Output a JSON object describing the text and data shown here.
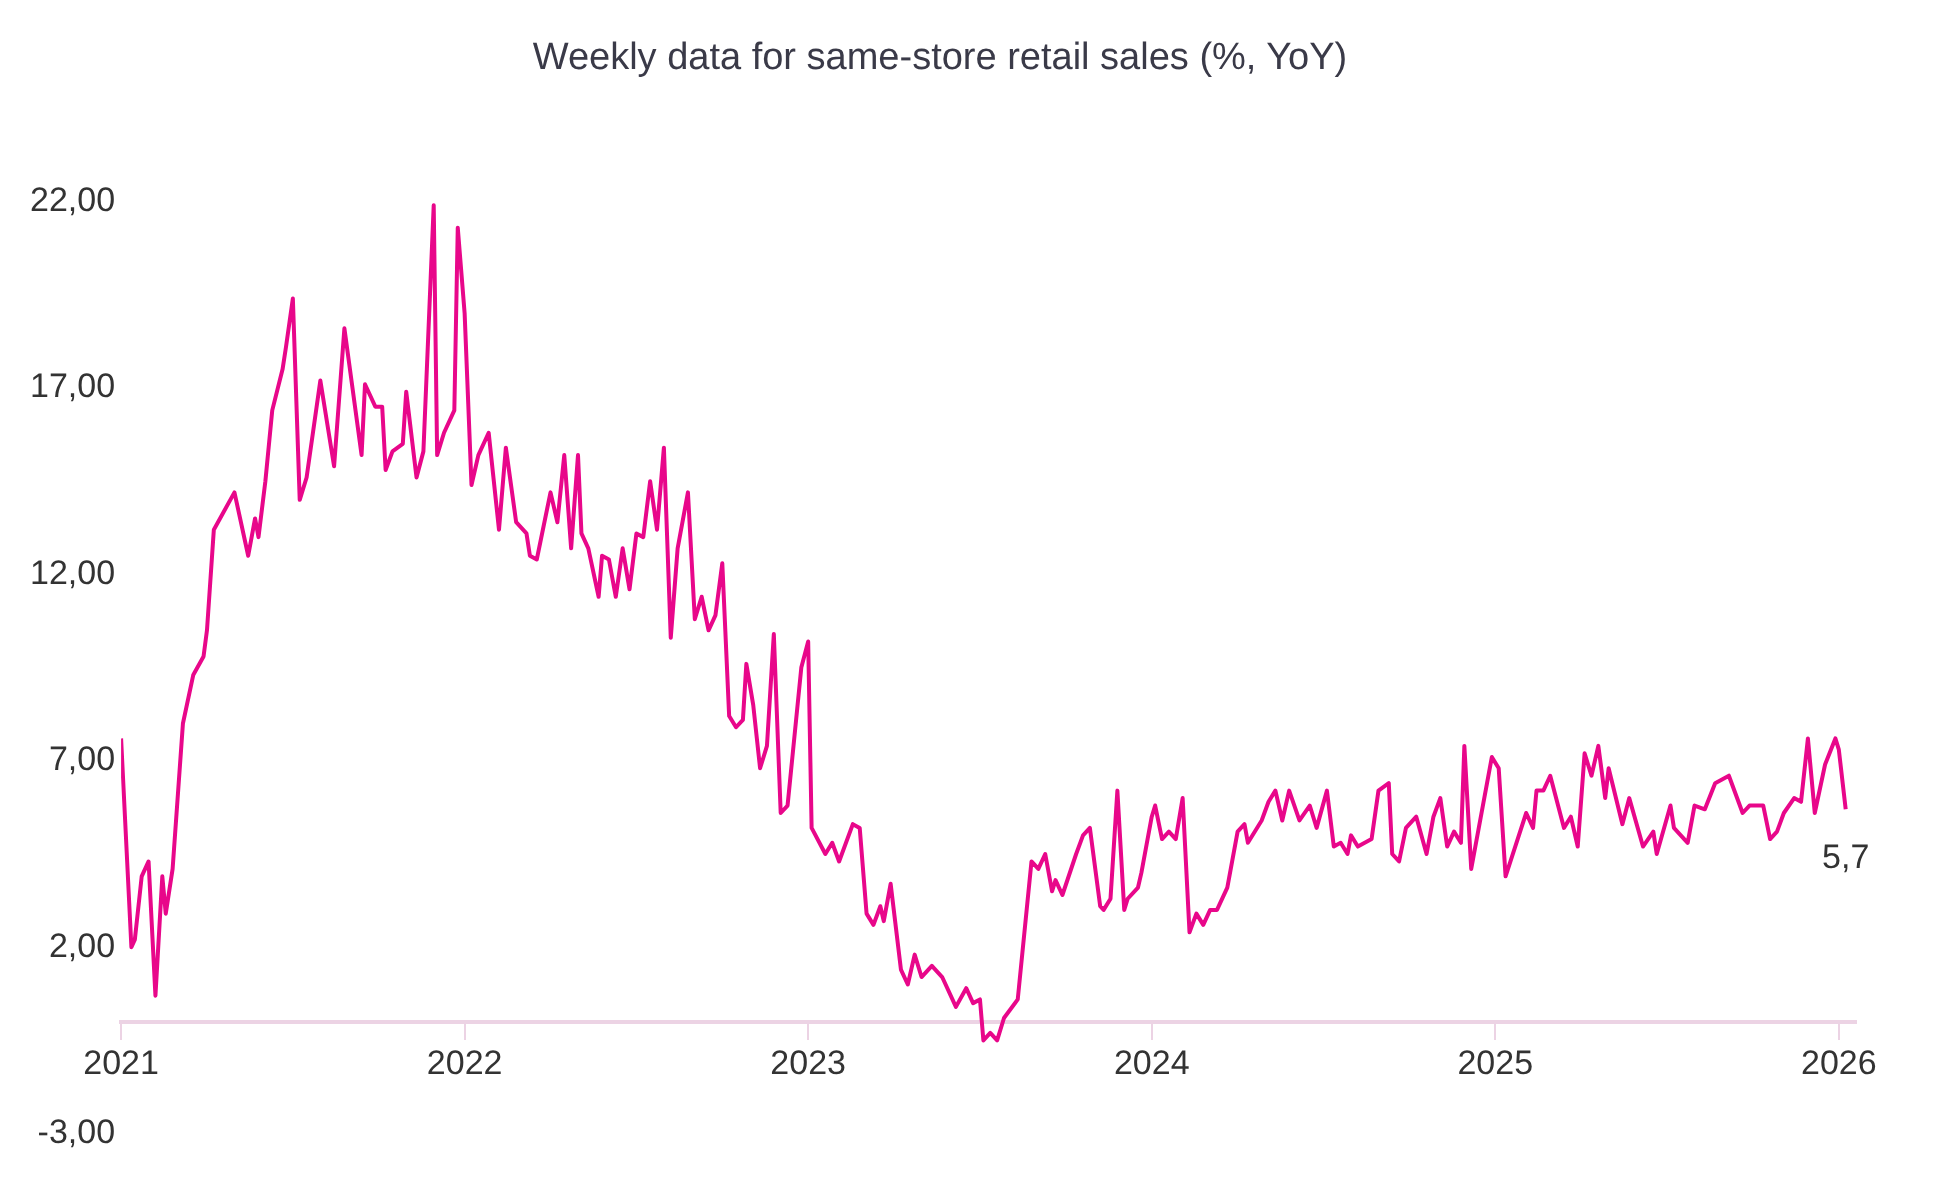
{
  "chart_data": {
    "type": "line",
    "title": "Weekly data for same-store retail sales (%, YoY)",
    "x": [
      2021.0,
      2021.03,
      2021.04,
      2021.06,
      2021.08,
      2021.1,
      2021.12,
      2021.13,
      2021.15,
      2021.18,
      2021.21,
      2021.24,
      2021.25,
      2021.27,
      2021.33,
      2021.37,
      2021.39,
      2021.4,
      2021.42,
      2021.44,
      2021.47,
      2021.48,
      2021.5,
      2021.52,
      2021.54,
      2021.58,
      2021.62,
      2021.65,
      2021.7,
      2021.71,
      2021.74,
      2021.76,
      2021.77,
      2021.79,
      2021.82,
      2021.83,
      2021.86,
      2021.88,
      2021.91,
      2021.92,
      2021.94,
      2021.97,
      2021.98,
      2022.0,
      2022.02,
      2022.04,
      2022.07,
      2022.1,
      2022.12,
      2022.15,
      2022.18,
      2022.19,
      2022.21,
      2022.25,
      2022.27,
      2022.29,
      2022.31,
      2022.33,
      2022.34,
      2022.36,
      2022.39,
      2022.4,
      2022.42,
      2022.44,
      2022.46,
      2022.48,
      2022.5,
      2022.52,
      2022.54,
      2022.56,
      2022.58,
      2022.6,
      2022.62,
      2022.65,
      2022.67,
      2022.69,
      2022.71,
      2022.73,
      2022.75,
      2022.77,
      2022.79,
      2022.81,
      2022.82,
      2022.84,
      2022.86,
      2022.88,
      2022.9,
      2022.92,
      2022.94,
      2022.98,
      2023.0,
      2023.01,
      2023.05,
      2023.07,
      2023.09,
      2023.13,
      2023.15,
      2023.17,
      2023.19,
      2023.21,
      2023.22,
      2023.24,
      2023.27,
      2023.29,
      2023.31,
      2023.33,
      2023.36,
      2023.39,
      2023.43,
      2023.46,
      2023.48,
      2023.5,
      2023.51,
      2023.53,
      2023.55,
      2023.57,
      2023.61,
      2023.65,
      2023.67,
      2023.69,
      2023.71,
      2023.72,
      2023.74,
      2023.78,
      2023.8,
      2023.82,
      2023.85,
      2023.86,
      2023.88,
      2023.9,
      2023.92,
      2023.93,
      2023.96,
      2023.97,
      2024.0,
      2024.01,
      2024.03,
      2024.05,
      2024.07,
      2024.09,
      2024.11,
      2024.13,
      2024.15,
      2024.17,
      2024.19,
      2024.22,
      2024.25,
      2024.27,
      2024.28,
      2024.32,
      2024.34,
      2024.36,
      2024.38,
      2024.4,
      2024.43,
      2024.46,
      2024.48,
      2024.51,
      2024.53,
      2024.55,
      2024.57,
      2024.58,
      2024.6,
      2024.64,
      2024.66,
      2024.69,
      2024.7,
      2024.72,
      2024.74,
      2024.77,
      2024.8,
      2024.82,
      2024.84,
      2024.86,
      2024.88,
      2024.9,
      2024.91,
      2024.93,
      2024.99,
      2025.01,
      2025.03,
      2025.09,
      2025.11,
      2025.12,
      2025.14,
      2025.16,
      2025.2,
      2025.22,
      2025.24,
      2025.26,
      2025.28,
      2025.3,
      2025.32,
      2025.33,
      2025.37,
      2025.39,
      2025.43,
      2025.46,
      2025.47,
      2025.51,
      2025.52,
      2025.56,
      2025.58,
      2025.61,
      2025.64,
      2025.68,
      2025.72,
      2025.74,
      2025.78,
      2025.8,
      2025.82,
      2025.84,
      2025.87,
      2025.89,
      2025.91,
      2025.93,
      2025.96,
      2025.99,
      2026.0,
      2026.02
    ],
    "series": [
      {
        "color": "#e8078a",
        "values": [
          7.6,
          2.0,
          2.2,
          3.9,
          4.3,
          0.7,
          3.9,
          2.9,
          4.1,
          8.0,
          9.3,
          9.8,
          10.5,
          13.2,
          14.2,
          12.5,
          13.5,
          13.0,
          14.5,
          16.4,
          17.5,
          18.1,
          19.4,
          14.0,
          14.6,
          17.2,
          14.9,
          18.6,
          15.2,
          17.1,
          16.5,
          16.5,
          14.8,
          15.3,
          15.5,
          16.9,
          14.6,
          15.3,
          21.9,
          15.2,
          15.8,
          16.4,
          21.3,
          19.0,
          14.4,
          15.2,
          15.8,
          13.2,
          15.4,
          13.4,
          13.1,
          12.5,
          12.4,
          14.2,
          13.4,
          15.2,
          12.7,
          15.2,
          13.1,
          12.7,
          11.4,
          12.5,
          12.4,
          11.4,
          12.7,
          11.6,
          13.1,
          13.0,
          14.5,
          13.2,
          15.4,
          10.3,
          12.7,
          14.2,
          10.8,
          11.4,
          10.5,
          10.9,
          12.3,
          8.2,
          7.9,
          8.1,
          9.6,
          8.5,
          6.8,
          7.4,
          10.4,
          5.6,
          5.8,
          9.5,
          10.2,
          5.2,
          4.5,
          4.8,
          4.3,
          5.3,
          5.2,
          2.9,
          2.6,
          3.1,
          2.7,
          3.7,
          1.4,
          1.0,
          1.8,
          1.2,
          1.5,
          1.2,
          0.4,
          0.9,
          0.5,
          0.6,
          -0.5,
          -0.3,
          -0.5,
          0.1,
          0.6,
          4.3,
          4.1,
          4.5,
          3.5,
          3.8,
          3.4,
          4.5,
          5.0,
          5.2,
          3.1,
          3.0,
          3.3,
          6.2,
          3.0,
          3.3,
          3.6,
          4.0,
          5.5,
          5.8,
          4.9,
          5.1,
          4.9,
          6.0,
          2.4,
          2.9,
          2.6,
          3.0,
          3.0,
          3.6,
          5.1,
          5.3,
          4.8,
          5.4,
          5.9,
          6.2,
          5.4,
          6.2,
          5.4,
          5.8,
          5.2,
          6.2,
          4.7,
          4.8,
          4.5,
          5.0,
          4.7,
          4.9,
          6.2,
          6.4,
          4.5,
          4.3,
          5.2,
          5.5,
          4.5,
          5.5,
          6.0,
          4.7,
          5.1,
          4.8,
          7.4,
          4.1,
          7.1,
          6.8,
          3.9,
          5.6,
          5.2,
          6.2,
          6.2,
          6.6,
          5.2,
          5.5,
          4.7,
          7.2,
          6.6,
          7.4,
          6.0,
          6.8,
          5.3,
          6.0,
          4.7,
          5.1,
          4.5,
          5.8,
          5.2,
          4.8,
          5.8,
          5.7,
          6.4,
          6.6,
          5.6,
          5.8,
          5.8,
          4.9,
          5.1,
          5.6,
          6.0,
          5.9,
          7.6,
          5.6,
          6.9,
          7.6,
          7.3,
          5.7
        ]
      }
    ],
    "xlim": [
      2021,
      2026.05
    ],
    "xticks": [
      2021,
      2022,
      2023,
      2024,
      2025,
      2026
    ],
    "ylim": [
      -3,
      22
    ],
    "yticks": [
      {
        "value": -3,
        "label": "-3,00"
      },
      {
        "value": 2,
        "label": "2,00"
      },
      {
        "value": 7,
        "label": "7,00"
      },
      {
        "value": 12,
        "label": "12,00"
      },
      {
        "value": 17,
        "label": "17,00"
      },
      {
        "value": 22,
        "label": "22,00"
      }
    ],
    "annotations": [
      {
        "text": "5,7",
        "x": 2026.02,
        "y": 5.7
      }
    ],
    "grid": false,
    "legend": false,
    "marker": "none",
    "line_style": "solid"
  }
}
